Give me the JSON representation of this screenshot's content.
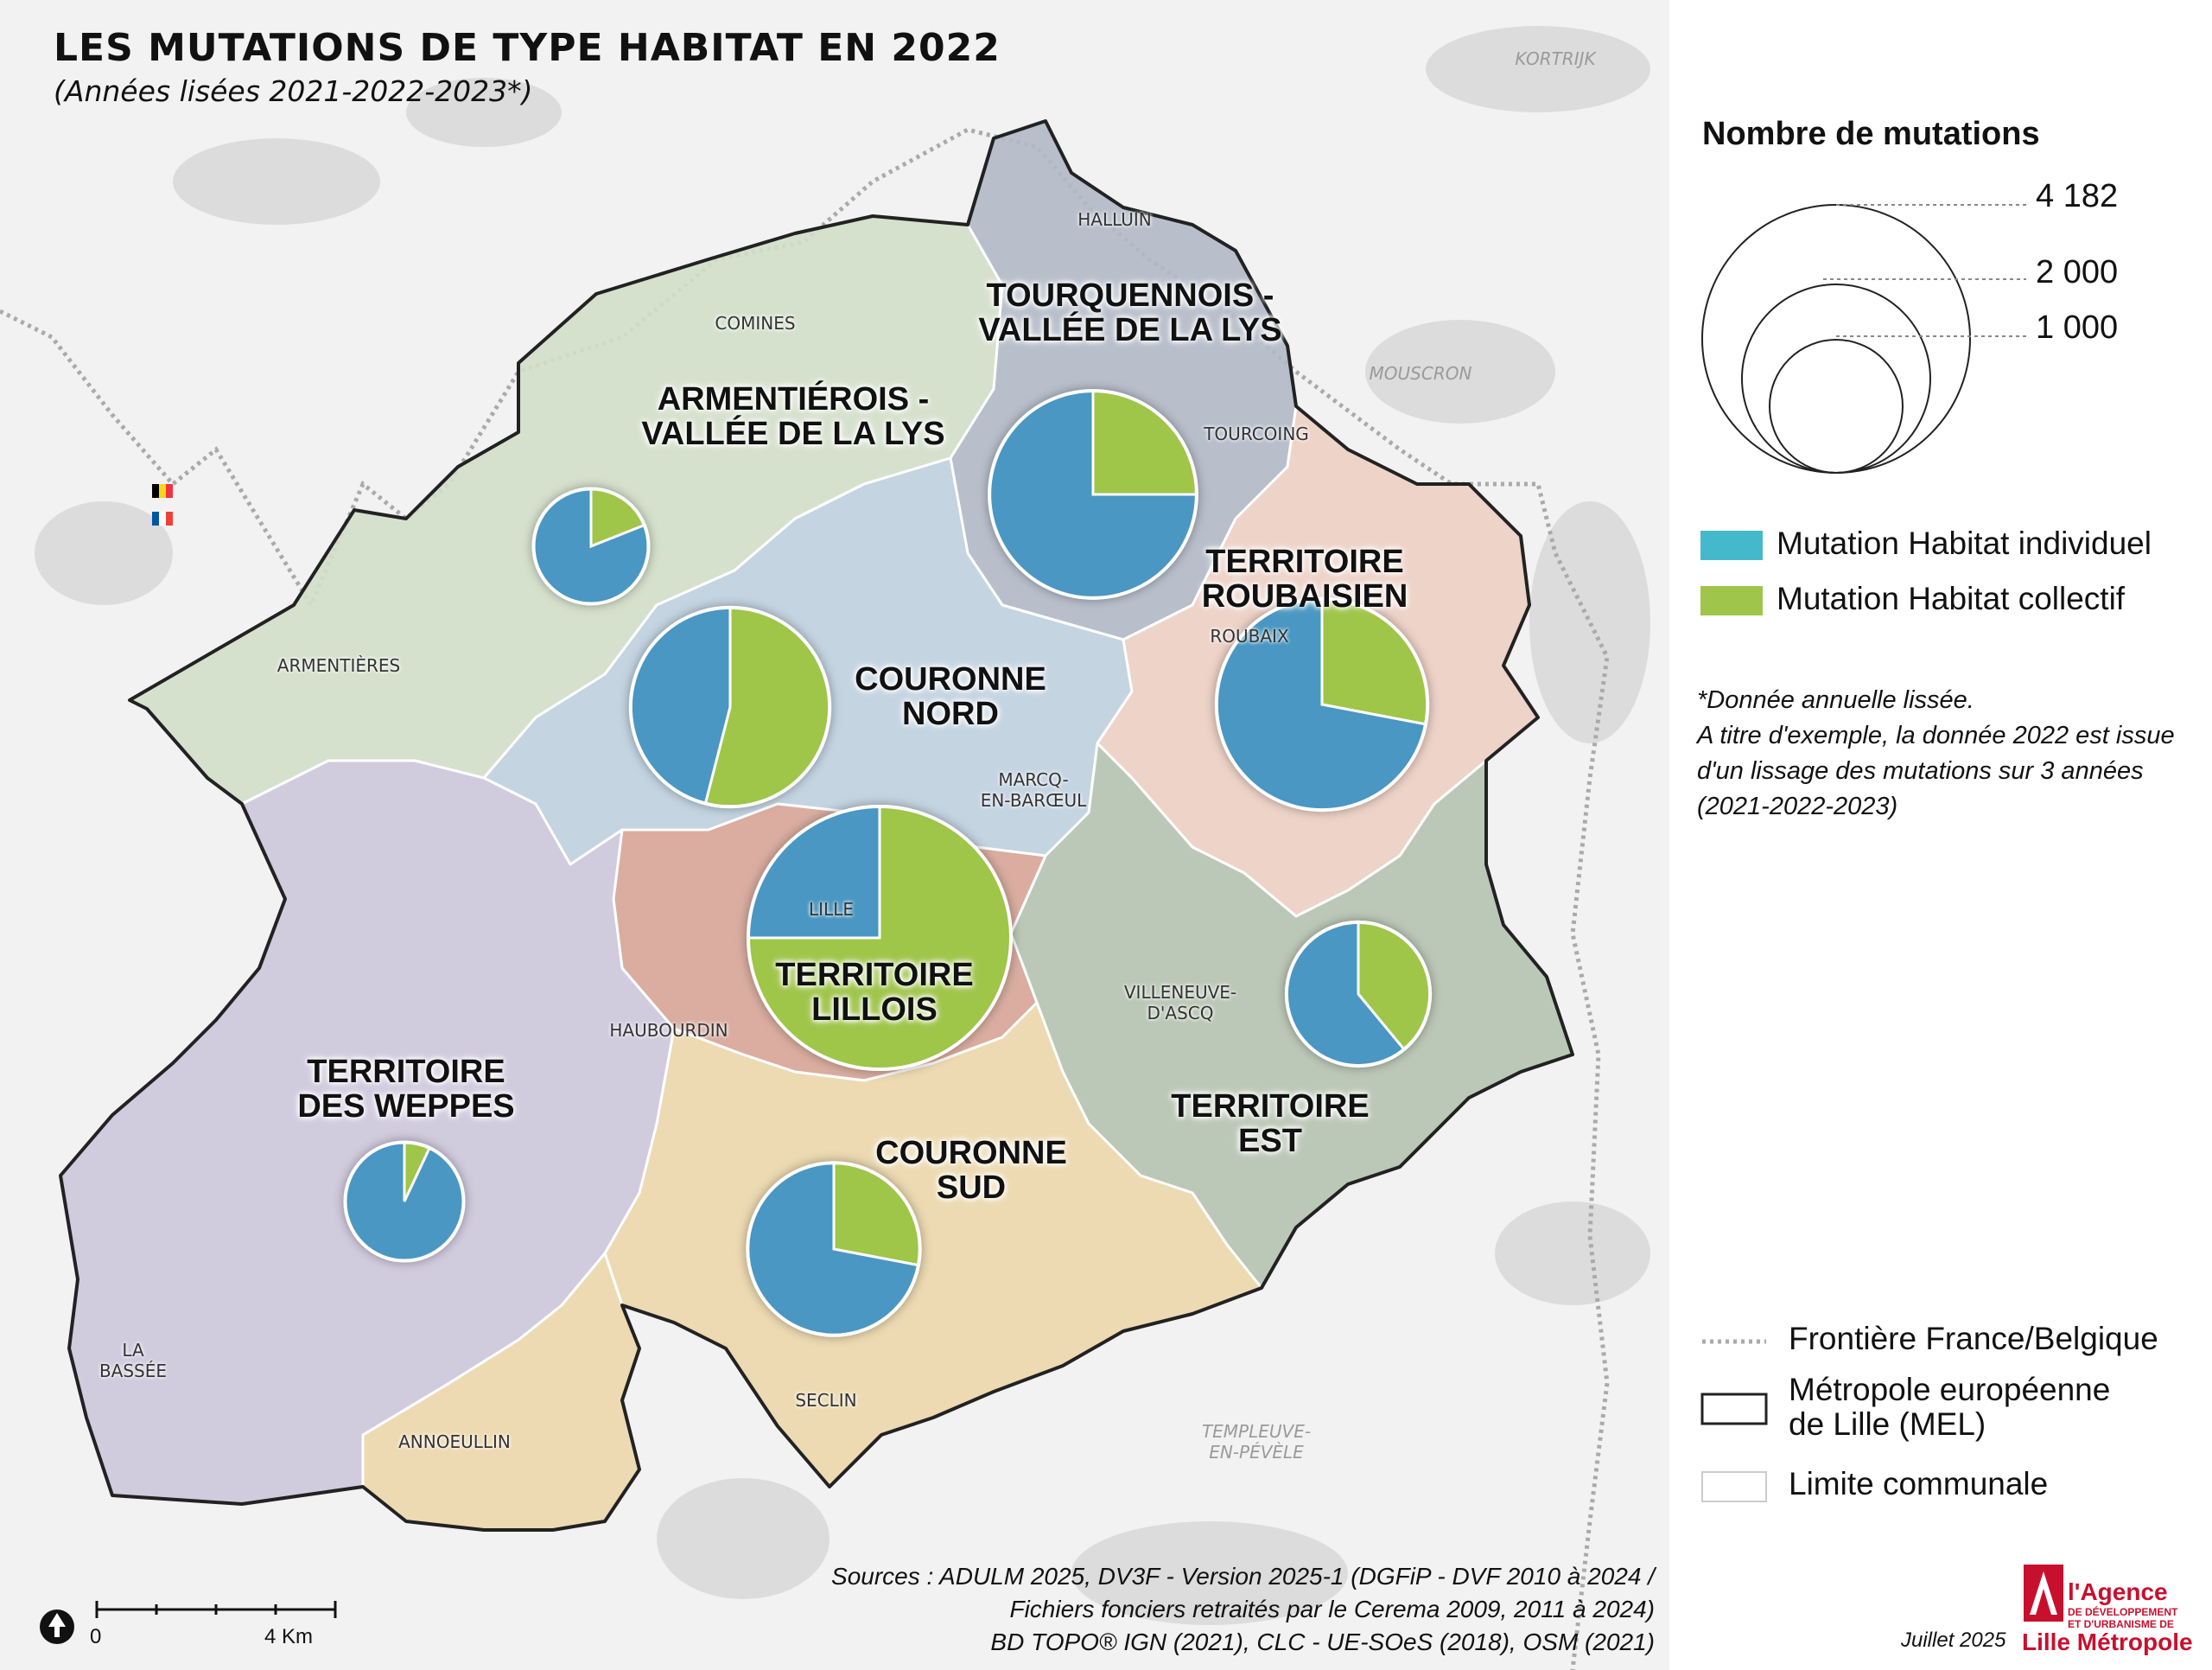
{
  "title": "LES MUTATIONS DE TYPE HABITAT EN 2022",
  "subtitle": "(Années lisées 2021-2022-2023*)",
  "territories": [
    {
      "id": "tourquennois",
      "name": "TOURQUENNOIS -\nVALLÉE DE LA LYS",
      "individuel": 0.75,
      "collectif": 0.25,
      "total": 2600
    },
    {
      "id": "armentierois",
      "name": "ARMENTIÉROIS -\nVALLÉE DE LA LYS",
      "individuel": 0.81,
      "collectif": 0.19,
      "total": 800
    },
    {
      "id": "roubaisien",
      "name": "TERRITOIRE\nROUBAISIEN",
      "individuel": 0.72,
      "collectif": 0.28,
      "total": 2700
    },
    {
      "id": "couronne-nord",
      "name": "COURONNE\nNORD",
      "individuel": 0.46,
      "collectif": 0.54,
      "total": 2400
    },
    {
      "id": "lillois",
      "name": "TERRITOIRE\nLILLOIS",
      "individuel": 0.25,
      "collectif": 0.75,
      "total": 4182
    },
    {
      "id": "est",
      "name": "TERRITOIRE\nEST",
      "individuel": 0.61,
      "collectif": 0.39,
      "total": 1250
    },
    {
      "id": "weppes",
      "name": "TERRITOIRE\nDES WEPPES",
      "individuel": 0.93,
      "collectif": 0.07,
      "total": 850
    },
    {
      "id": "couronne-sud",
      "name": "COURONNE\nSUD",
      "individuel": 0.72,
      "collectif": 0.28,
      "total": 1800
    }
  ],
  "cities": [
    "HALLUIN",
    "COMINES",
    "TOURCOING",
    "ROUBAIX",
    "ARMENTIÈRES",
    "MARCQ-\nEN-BARŒUL",
    "LILLE",
    "HAUBOURDIN",
    "VILLENEUVE-\nD'ASCQ",
    "LA\nBASSÉE",
    "SECLIN",
    "ANNOEULLIN"
  ],
  "foreign_places": [
    "KORTRIJK",
    "MOUSCRON",
    "TEMPLEUVE-\nEN-PÉVÈLE"
  ],
  "legend": {
    "size_title": "Nombre de mutations",
    "size_values": [
      "4 182",
      "2 000",
      "1 000"
    ],
    "individuel_label": "Mutation Habitat individuel",
    "collectif_label": "Mutation Habitat collectif",
    "border_label": "Frontière France/Belgique",
    "mel_label": "Métropole européenne\nde Lille (MEL)",
    "commune_label": "Limite communale"
  },
  "colors": {
    "individuel": "#4a97c2",
    "collectif": "#9fc54a",
    "legend_individuel": "#45b9cc",
    "legend_collectif": "#9fc54a"
  },
  "note": "*Donnée annuelle lissée.\nA titre d'exemple, la donnée 2022 est issue d'un lissage des mutations sur 3 années (2021-2022-2023)",
  "sources": "Sources : ADULM 2025, DV3F - Version 2025-1 (DGFiP - DVF 2010 à 2024 /\nFichiers fonciers retraités par le Cerema 2009, 2011 à 2024)\nBD TOPO® IGN (2021), CLC - UE-SOeS (2018), OSM (2021)",
  "date": "Juillet 2025",
  "scale": {
    "start": "0",
    "end": "4 Km"
  },
  "logo": {
    "line1": "l'Agence",
    "line2": "DE DÉVELOPPEMENT\nET D'URBANISME DE",
    "line3": "Lille Métropole"
  }
}
